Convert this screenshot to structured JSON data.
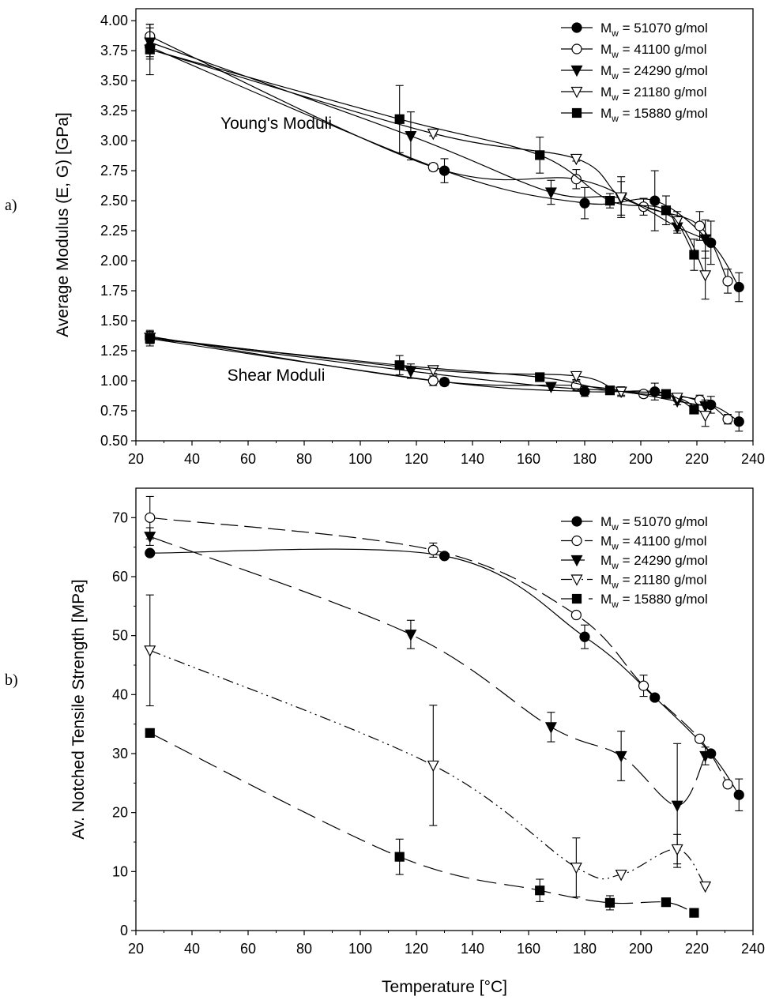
{
  "chart_data": [
    {
      "panel_label": "a)",
      "type": "line",
      "xlabel": "",
      "ylabel": "Average Modulus (E, G) [GPa]",
      "xlim": [
        20,
        240
      ],
      "ylim": [
        0.5,
        4.1
      ],
      "x_ticks": [
        "20",
        "40",
        "60",
        "80",
        "100",
        "120",
        "140",
        "160",
        "180",
        "200",
        "220",
        "240"
      ],
      "y_ticks": [
        "0.50",
        "0.75",
        "1.00",
        "1.25",
        "1.50",
        "1.75",
        "2.00",
        "2.25",
        "2.50",
        "2.75",
        "3.00",
        "3.25",
        "3.50",
        "3.75",
        "4.00"
      ],
      "grid": false,
      "legend_position": "top-right",
      "annotations": [
        {
          "text": "Young's Moduli",
          "x": 70,
          "y": 3.1
        },
        {
          "text": "Shear Moduli",
          "x": 70,
          "y": 1.0
        }
      ],
      "series": [
        {
          "mw": "51070",
          "marker": "circle-filled",
          "groups": [
            {
              "points": [
                [
                  25,
                  3.78,
                  0.05
                ],
                [
                  130,
                  2.75,
                  0.1
                ],
                [
                  180,
                  2.48,
                  0.13
                ],
                [
                  205,
                  2.5,
                  0.25
                ],
                [
                  225,
                  2.15,
                  0.18
                ],
                [
                  235,
                  1.78,
                  0.12
                ]
              ]
            },
            {
              "points": [
                [
                  25,
                  1.35,
                  0.06
                ],
                [
                  130,
                  0.99,
                  0.03
                ],
                [
                  180,
                  0.91,
                  0.04
                ],
                [
                  205,
                  0.91,
                  0.07
                ],
                [
                  225,
                  0.8,
                  0.07
                ],
                [
                  235,
                  0.66,
                  0.08
                ]
              ]
            }
          ]
        },
        {
          "mw": "41100",
          "marker": "circle-open",
          "groups": [
            {
              "points": [
                [
                  25,
                  3.87,
                  0.1
                ],
                [
                  126,
                  2.78,
                  0.03
                ],
                [
                  177,
                  2.68,
                  0.08
                ],
                [
                  201,
                  2.45,
                  0.07
                ],
                [
                  221,
                  2.29,
                  0.12
                ],
                [
                  231,
                  1.83,
                  0.1
                ]
              ]
            },
            {
              "points": [
                [
                  25,
                  1.37,
                  0.05
                ],
                [
                  126,
                  1.0,
                  0.04
                ],
                [
                  177,
                  0.96,
                  0.04
                ],
                [
                  201,
                  0.89,
                  0.03
                ],
                [
                  221,
                  0.84,
                  0.04
                ],
                [
                  231,
                  0.68,
                  0.04
                ]
              ]
            }
          ]
        },
        {
          "mw": "24290",
          "marker": "triangle-down-filled",
          "groups": [
            {
              "points": [
                [
                  25,
                  3.82,
                  0.12
                ],
                [
                  118,
                  3.04,
                  0.2
                ],
                [
                  168,
                  2.57,
                  0.1
                ],
                [
                  193,
                  2.52,
                  0.14
                ],
                [
                  213,
                  2.28,
                  0.05
                ],
                [
                  223,
                  2.18,
                  0.16
                ]
              ]
            },
            {
              "points": [
                [
                  25,
                  1.36,
                  0.05
                ],
                [
                  118,
                  1.08,
                  0.06
                ],
                [
                  168,
                  0.95,
                  0.03
                ],
                [
                  193,
                  0.91,
                  0.03
                ],
                [
                  213,
                  0.83,
                  0.03
                ],
                [
                  223,
                  0.79,
                  0.05
                ]
              ]
            }
          ]
        },
        {
          "mw": "21180",
          "marker": "triangle-down-open",
          "groups": [
            {
              "points": [
                [
                  25,
                  3.76,
                  0.08
                ],
                [
                  126,
                  3.06,
                  0.02
                ],
                [
                  177,
                  2.85,
                  0.02
                ],
                [
                  193,
                  2.53,
                  0.17
                ],
                [
                  213,
                  2.33,
                  0.08
                ],
                [
                  223,
                  1.88,
                  0.2
                ]
              ]
            },
            {
              "points": [
                [
                  25,
                  1.36,
                  0.05
                ],
                [
                  126,
                  1.09,
                  0.03
                ],
                [
                  177,
                  1.04,
                  0.03
                ],
                [
                  193,
                  0.91,
                  0.04
                ],
                [
                  213,
                  0.86,
                  0.03
                ],
                [
                  223,
                  0.71,
                  0.09
                ]
              ]
            }
          ]
        },
        {
          "mw": "15880",
          "marker": "square-filled",
          "groups": [
            {
              "points": [
                [
                  25,
                  3.76,
                  0.21
                ],
                [
                  114,
                  3.18,
                  0.28
                ],
                [
                  164,
                  2.88,
                  0.15
                ],
                [
                  189,
                  2.5,
                  0.06
                ],
                [
                  209,
                  2.42,
                  0.12
                ],
                [
                  219,
                  2.05,
                  0.13
                ]
              ]
            },
            {
              "points": [
                [
                  25,
                  1.35,
                  0.04
                ],
                [
                  114,
                  1.13,
                  0.08
                ],
                [
                  164,
                  1.03,
                  0.02
                ],
                [
                  189,
                  0.92,
                  0.02
                ],
                [
                  209,
                  0.89,
                  0.02
                ],
                [
                  219,
                  0.76,
                  0.03
                ]
              ]
            }
          ]
        }
      ]
    },
    {
      "panel_label": "b)",
      "type": "line",
      "xlabel": "Temperature [°C]",
      "ylabel": "Av. Notched Tensile Strength [MPa]",
      "xlim": [
        20,
        240
      ],
      "ylim": [
        0,
        75
      ],
      "x_ticks": [
        "20",
        "40",
        "60",
        "80",
        "100",
        "120",
        "140",
        "160",
        "180",
        "200",
        "220",
        "240"
      ],
      "y_ticks": [
        "0",
        "10",
        "20",
        "30",
        "40",
        "50",
        "60",
        "70"
      ],
      "grid": false,
      "legend_position": "top-right",
      "annotations": [],
      "series": [
        {
          "mw": "51070",
          "marker": "circle-filled",
          "dash": "",
          "groups": [
            {
              "points": [
                [
                  25,
                  64,
                  0
                ],
                [
                  130,
                  63.5,
                  0
                ],
                [
                  180,
                  49.8,
                  2
                ],
                [
                  205,
                  39.5,
                  0
                ],
                [
                  225,
                  30,
                  0
                ],
                [
                  235,
                  23,
                  2.7
                ]
              ]
            }
          ]
        },
        {
          "mw": "41100",
          "marker": "circle-open",
          "dash": "22 8",
          "groups": [
            {
              "points": [
                [
                  25,
                  70,
                  3.6
                ],
                [
                  126,
                  64.5,
                  1.2
                ],
                [
                  177,
                  53.5,
                  0
                ],
                [
                  201,
                  41.5,
                  1.8
                ],
                [
                  221,
                  32.5,
                  0
                ],
                [
                  231,
                  24.8,
                  0
                ]
              ]
            }
          ]
        },
        {
          "mw": "24290",
          "marker": "triangle-down-filled",
          "dash": "30 10",
          "groups": [
            {
              "points": [
                [
                  25,
                  66.8,
                  1.5
                ],
                [
                  118,
                  50.2,
                  2.4
                ],
                [
                  168,
                  34.5,
                  2.5
                ],
                [
                  193,
                  29.6,
                  4.2
                ],
                [
                  213,
                  21.2,
                  10.5
                ],
                [
                  223,
                  29.6,
                  1.5
                ]
              ]
            }
          ]
        },
        {
          "mw": "21180",
          "marker": "triangle-down-open",
          "dash": "14 5 2 5 2 5",
          "groups": [
            {
              "points": [
                [
                  25,
                  47.5,
                  9.4
                ],
                [
                  126,
                  28,
                  10.2
                ],
                [
                  177,
                  10.7,
                  5
                ],
                [
                  193,
                  9.5,
                  0
                ],
                [
                  213,
                  13.8,
                  2.5
                ],
                [
                  223,
                  7.5,
                  0
                ]
              ]
            }
          ]
        },
        {
          "mw": "15880",
          "marker": "square-filled",
          "dash": "25 10",
          "groups": [
            {
              "points": [
                [
                  25,
                  33.5,
                  0
                ],
                [
                  114,
                  12.5,
                  3
                ],
                [
                  164,
                  6.8,
                  1.9
                ],
                [
                  189,
                  4.7,
                  1.2
                ],
                [
                  209,
                  4.8,
                  0
                ],
                [
                  219,
                  3,
                  0
                ]
              ]
            }
          ]
        }
      ]
    }
  ],
  "legend_prefix": "M",
  "legend_subscript": "w",
  "legend_suffix": " g/mol"
}
